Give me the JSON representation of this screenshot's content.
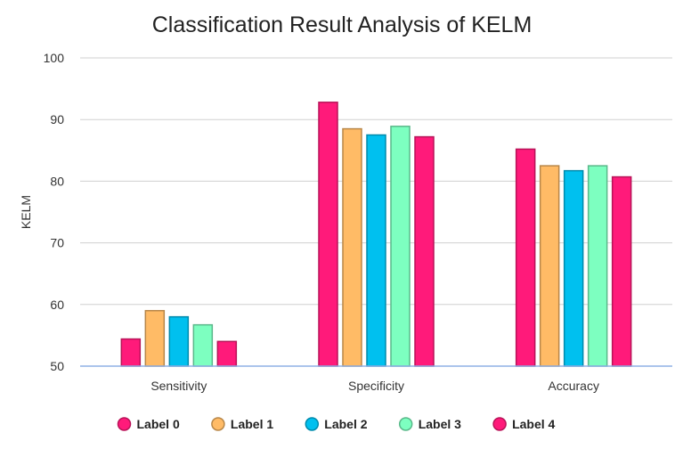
{
  "chart_data": {
    "type": "bar",
    "title": "Classification Result Analysis of KELM",
    "xlabel": "",
    "ylabel": "KELM",
    "ylim": [
      50,
      100
    ],
    "yticks": [
      50,
      60,
      70,
      80,
      90,
      100
    ],
    "grid": true,
    "legend_position": "bottom",
    "categories": [
      "Sensitivity",
      "Specificity",
      "Accuracy"
    ],
    "series": [
      {
        "name": "Label 0",
        "color": "#ff1a7a",
        "values": [
          54.4,
          92.8,
          85.2
        ]
      },
      {
        "name": "Label 1",
        "color": "#ffbb66",
        "values": [
          59.0,
          88.5,
          82.5
        ]
      },
      {
        "name": "Label 2",
        "color": "#00c0ef",
        "values": [
          58.0,
          87.5,
          81.7
        ]
      },
      {
        "name": "Label 3",
        "color": "#7dffc0",
        "values": [
          56.7,
          88.9,
          82.5
        ]
      },
      {
        "name": "Label 4",
        "color": "#ff1a7a",
        "values": [
          54.0,
          87.2,
          80.7
        ]
      }
    ]
  }
}
